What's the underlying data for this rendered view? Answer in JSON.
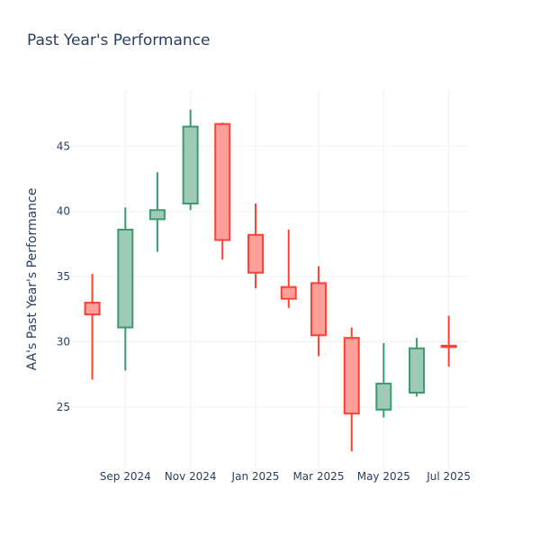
{
  "chart_data": {
    "type": "candlestick",
    "title": "Past Year's Performance",
    "ylabel": "AA's Past Year's Performance",
    "xlabel": "",
    "ylim": [
      20.3,
      49.3
    ],
    "y_ticks": [
      25,
      30,
      35,
      40,
      45
    ],
    "x_ticks": [
      {
        "date": "2024-09-01",
        "label": "Sep 2024"
      },
      {
        "date": "2024-11-01",
        "label": "Nov 2024"
      },
      {
        "date": "2025-01-01",
        "label": "Jan 2025"
      },
      {
        "date": "2025-03-01",
        "label": "Mar 2025"
      },
      {
        "date": "2025-05-01",
        "label": "May 2025"
      },
      {
        "date": "2025-07-01",
        "label": "Jul 2025"
      }
    ],
    "grid": true,
    "colors": {
      "increasing": "#3d9970",
      "increasing_fill": "#9ecbb7",
      "decreasing": "#ff4136",
      "decreasing_fill": "#ff9f9a",
      "text": "#2a3f5f",
      "grid": "#f0f0f5"
    },
    "candles": [
      {
        "date": "2024-08-01",
        "open": 33.0,
        "high": 35.2,
        "low": 27.1,
        "close": 32.1
      },
      {
        "date": "2024-09-01",
        "open": 31.1,
        "high": 40.3,
        "low": 27.8,
        "close": 38.6
      },
      {
        "date": "2024-10-01",
        "open": 39.4,
        "high": 43.0,
        "low": 36.9,
        "close": 40.1
      },
      {
        "date": "2024-11-01",
        "open": 40.6,
        "high": 47.8,
        "low": 40.1,
        "close": 46.5
      },
      {
        "date": "2024-12-01",
        "open": 46.7,
        "high": 46.8,
        "low": 36.3,
        "close": 37.8
      },
      {
        "date": "2025-01-01",
        "open": 38.2,
        "high": 40.6,
        "low": 34.1,
        "close": 35.3
      },
      {
        "date": "2025-02-01",
        "open": 34.2,
        "high": 38.6,
        "low": 32.6,
        "close": 33.3
      },
      {
        "date": "2025-03-01",
        "open": 34.5,
        "high": 35.8,
        "low": 28.9,
        "close": 30.5
      },
      {
        "date": "2025-04-01",
        "open": 30.3,
        "high": 31.1,
        "low": 21.6,
        "close": 24.5
      },
      {
        "date": "2025-05-01",
        "open": 24.8,
        "high": 29.9,
        "low": 24.2,
        "close": 26.8
      },
      {
        "date": "2025-06-01",
        "open": 26.1,
        "high": 30.3,
        "low": 25.8,
        "close": 29.5
      },
      {
        "date": "2025-07-01",
        "open": 29.7,
        "high": 32.0,
        "low": 28.1,
        "close": 29.6
      }
    ]
  }
}
